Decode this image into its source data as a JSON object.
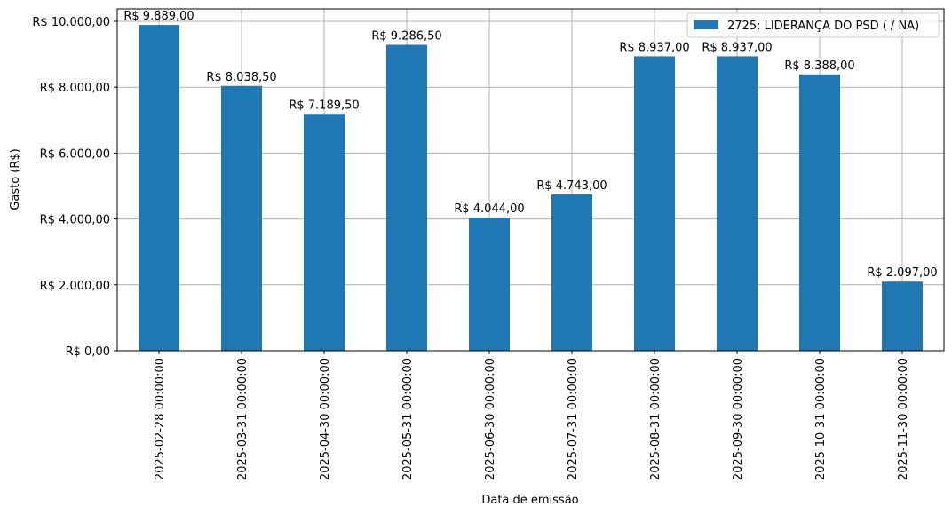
{
  "chart_data": {
    "type": "bar",
    "title": "",
    "xlabel": "Data de emissão",
    "ylabel": "Gasto (R$)",
    "ylim": [
      0,
      10400
    ],
    "grid": true,
    "legend_position": "upper right",
    "categories": [
      "2025-02-28 00:00:00",
      "2025-03-31 00:00:00",
      "2025-04-30 00:00:00",
      "2025-05-31 00:00:00",
      "2025-06-30 00:00:00",
      "2025-07-31 00:00:00",
      "2025-08-31 00:00:00",
      "2025-09-30 00:00:00",
      "2025-10-31 00:00:00",
      "2025-11-30 00:00:00"
    ],
    "series": [
      {
        "name": "2725: LIDERANÇA DO PSD ( / NA)",
        "color": "#1f77b4",
        "values": [
          9889.0,
          8038.5,
          7189.5,
          9286.5,
          4044.0,
          4743.0,
          8937.0,
          8937.0,
          8388.0,
          2097.0
        ],
        "labels": [
          "R$ 9.889,00",
          "R$ 8.038,50",
          "R$ 7.189,50",
          "R$ 9.286,50",
          "R$ 4.044,00",
          "R$ 4.743,00",
          "R$ 8.937,00",
          "R$ 8.937,00",
          "R$ 8.388,00",
          "R$ 2.097,00"
        ]
      }
    ],
    "yticks": [
      {
        "value": 0,
        "label": "R$ 0,00"
      },
      {
        "value": 2000,
        "label": "R$ 2.000,00"
      },
      {
        "value": 4000,
        "label": "R$ 4.000,00"
      },
      {
        "value": 6000,
        "label": "R$ 6.000,00"
      },
      {
        "value": 8000,
        "label": "R$ 8.000,00"
      },
      {
        "value": 10000,
        "label": "R$ 10.000,00"
      }
    ]
  },
  "colors": {
    "bar": "#1f77b4",
    "grid": "#b0b0b0",
    "axis": "#000000"
  }
}
